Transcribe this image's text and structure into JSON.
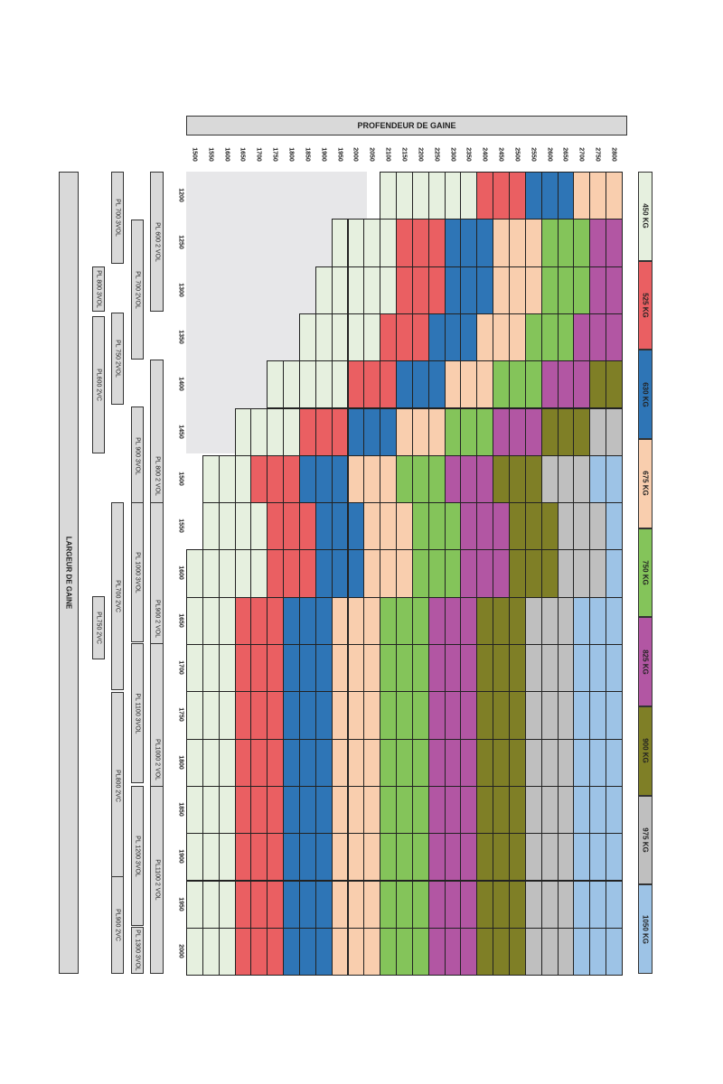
{
  "header": {
    "title": "PROFENDEUR DE GAINE"
  },
  "left": {
    "title": "LARGEUR DE GAINE"
  },
  "depth_labels": [
    "1500",
    "1550",
    "1600",
    "1650",
    "1700",
    "1750",
    "1800",
    "1850",
    "1900",
    "1950",
    "2000",
    "2050",
    "2100",
    "2150",
    "2200",
    "2250",
    "2300",
    "2350",
    "2400",
    "2450",
    "2500",
    "2550",
    "2600",
    "2650",
    "2700",
    "2750",
    "2800"
  ],
  "width_labels": [
    "1200",
    "1250",
    "1300",
    "1350",
    "1400",
    "1450",
    "1500",
    "1550",
    "1600",
    "1650",
    "1700",
    "1750",
    "1800",
    "1850",
    "1900",
    "1950",
    "2000"
  ],
  "legend": [
    {
      "label": "450 KG",
      "color": "#e6f0df"
    },
    {
      "label": "525 KG",
      "color": "#ea5f62"
    },
    {
      "label": "630 KG",
      "color": "#2e75b6"
    },
    {
      "label": "675 KG",
      "color": "#f9ceae"
    },
    {
      "label": "750 KG",
      "color": "#84c45a"
    },
    {
      "label": "825 KG",
      "color": "#b256a3"
    },
    {
      "label": "900 KG",
      "color": "#7f7f26"
    },
    {
      "label": "975 KG",
      "color": "#bfbfbf"
    },
    {
      "label": "1050 KG",
      "color": "#9dc3e6"
    }
  ],
  "matrix_start": [
    12,
    9,
    8,
    7,
    5,
    3,
    1,
    1,
    0,
    0,
    0,
    0,
    0,
    0,
    0,
    0,
    0
  ],
  "matrix_firstblock": [
    6,
    4,
    5,
    5,
    5,
    4,
    3,
    4,
    5,
    3,
    3,
    3,
    3,
    3,
    3,
    3,
    3
  ],
  "platforms_col1": [
    {
      "label": "PL 600 2 VOL"
    },
    {
      "label": "PL 800 2 VOL"
    },
    {
      "label": "PL900 2 VOL"
    },
    {
      "label": "PL1000 2 VOL"
    },
    {
      "label": "PL1100 2 VOL"
    }
  ],
  "platforms_col2": [
    {
      "label": "PL 700 2VOL"
    },
    {
      "label": "PL 900 3VOL"
    },
    {
      "label": "PL 1000 3VOL"
    },
    {
      "label": "PL 1100 3VOL"
    },
    {
      "label": "PL 1200 3VOL"
    },
    {
      "label": "PL 1300 3VOL"
    }
  ],
  "platforms_col3": [
    {
      "label": "PL 700 3VOL"
    },
    {
      "label": "PL 750 2VOL"
    },
    {
      "label": "PL700 2VC"
    },
    {
      "label": "PL800 2VC"
    },
    {
      "label": "PL900 2VC"
    }
  ],
  "platforms_col4": [
    {
      "label": "PL 800 3VOL"
    },
    {
      "label": "PL600 2VC"
    },
    {
      "label": "PL750 2VC"
    }
  ]
}
